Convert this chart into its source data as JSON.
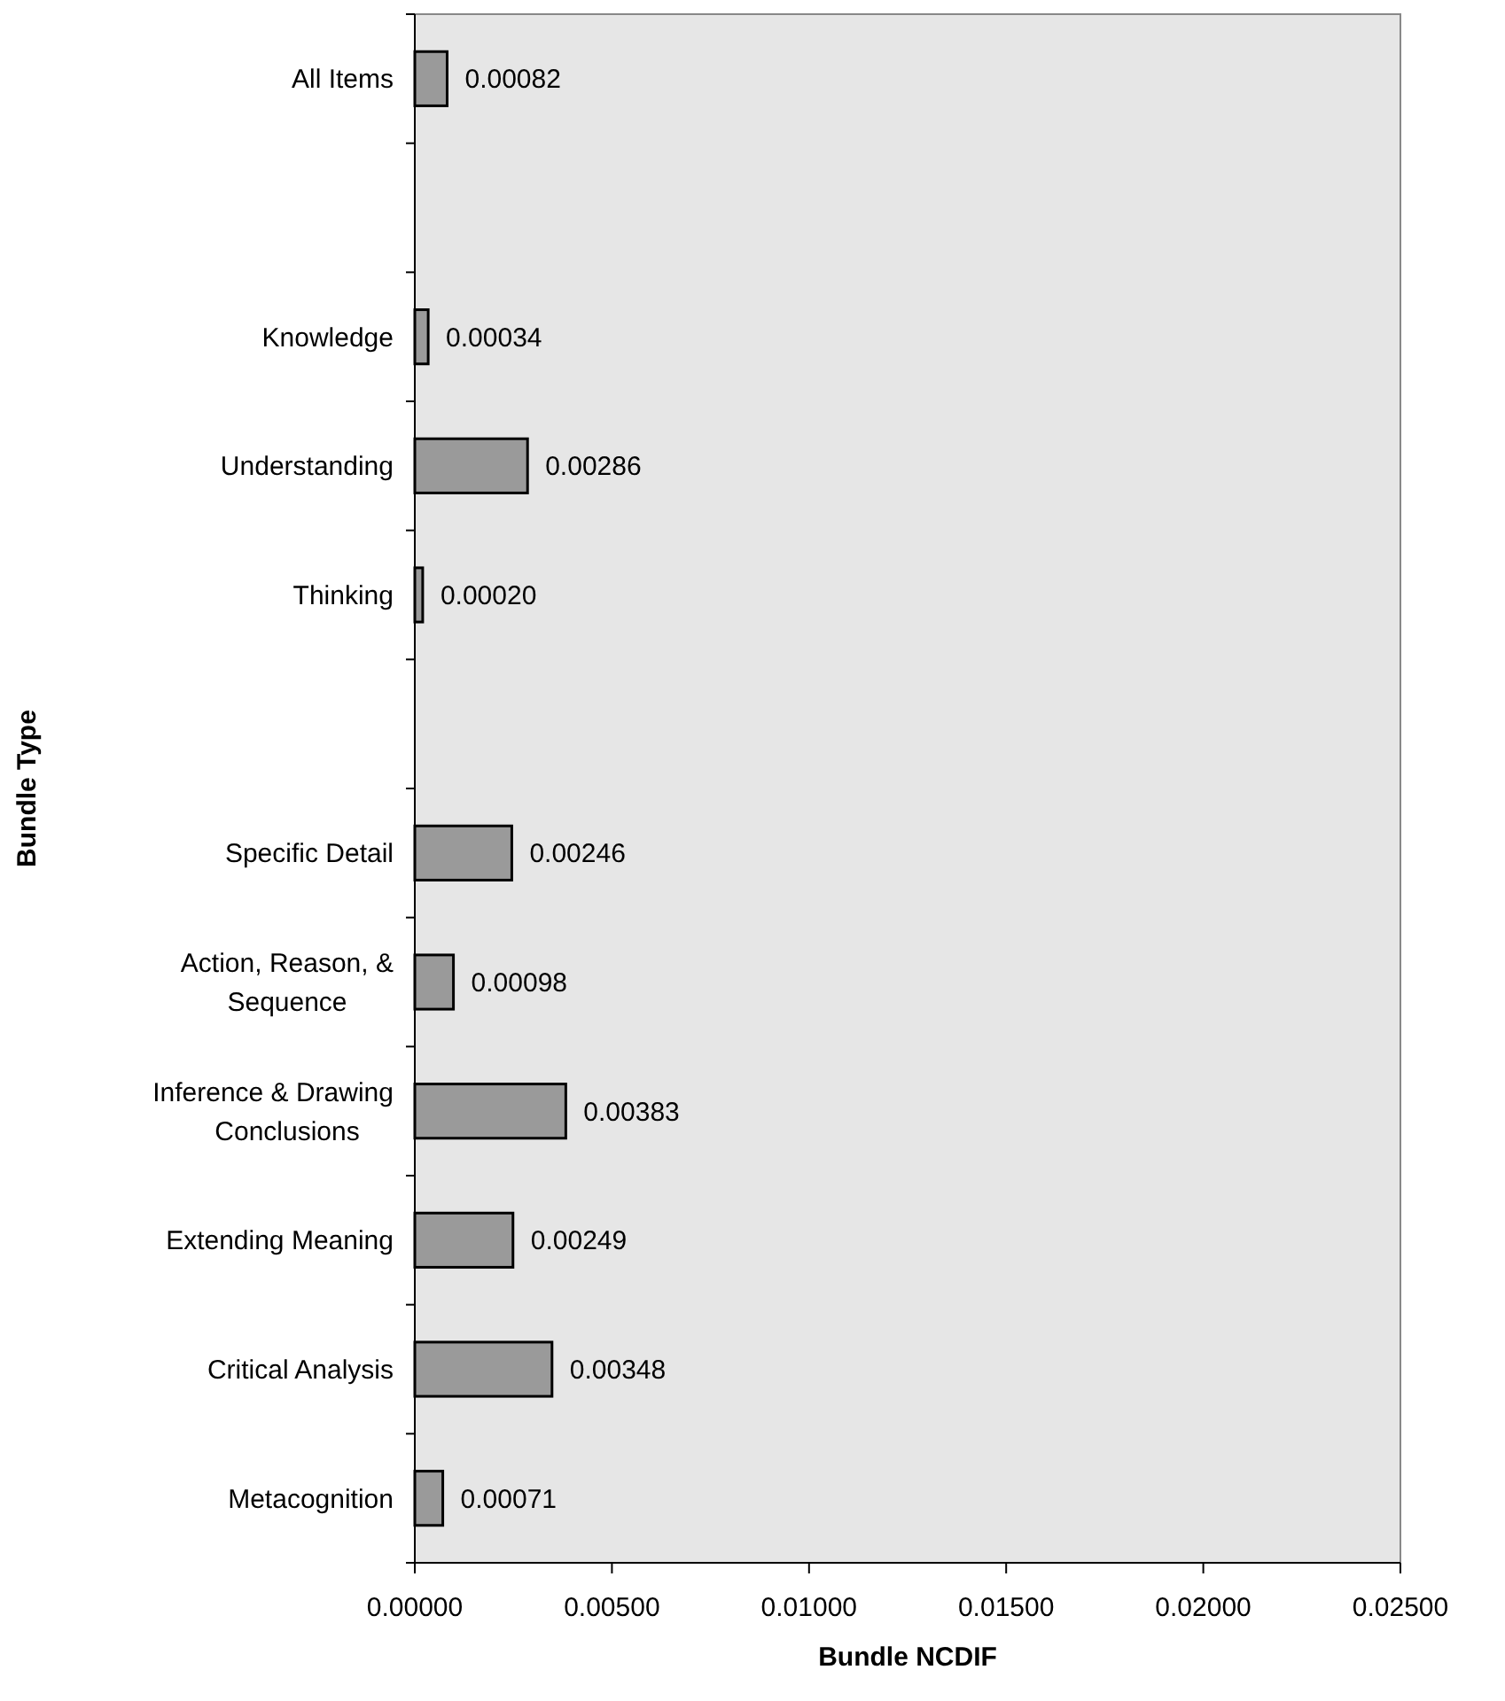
{
  "chart_data": {
    "type": "bar",
    "orientation": "horizontal",
    "xlabel": "Bundle NCDIF",
    "ylabel": "Bundle Type",
    "categories": [
      "All Items",
      null,
      "Knowledge",
      "Understanding",
      "Thinking",
      null,
      "Specific Detail",
      "Action, Reason, &\nSequence",
      "Inference & Drawing\nConclusions",
      "Extending Meaning",
      "Critical Analysis",
      "Metacognition"
    ],
    "values": [
      0.00082,
      null,
      0.00034,
      0.00286,
      0.0002,
      null,
      0.00246,
      0.00098,
      0.00383,
      0.00249,
      0.00348,
      0.00071
    ],
    "value_labels": [
      "0.00082",
      null,
      "0.00034",
      "0.00286",
      "0.00020",
      null,
      "0.00246",
      "0.00098",
      "0.00383",
      "0.00249",
      "0.00348",
      "0.00071"
    ],
    "color": "#9a9a9a",
    "xlim": [
      0,
      0.025
    ],
    "xticks": [
      {
        "value": 0,
        "label": "0.00000"
      },
      {
        "value": 0.005,
        "label": "0.00500"
      },
      {
        "value": 0.01,
        "label": "0.01000"
      },
      {
        "value": 0.015,
        "label": "0.01500"
      },
      {
        "value": 0.02,
        "label": "0.02000"
      },
      {
        "value": 0.025,
        "label": "0.02500"
      }
    ],
    "grid": false
  }
}
